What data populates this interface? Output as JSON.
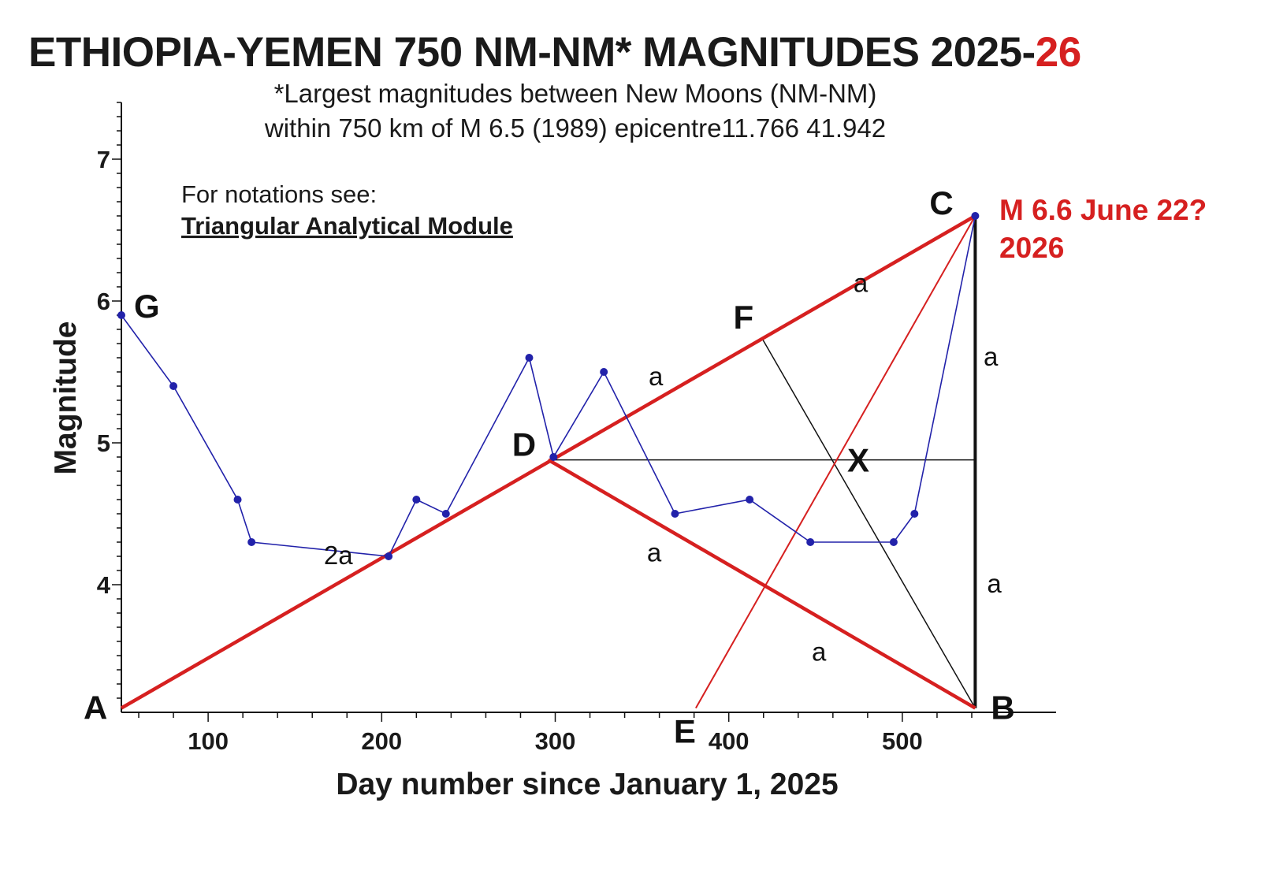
{
  "title": {
    "main": "ETHIOPIA-YEMEN 750 NM-NM* MAGNITUDES 2025-",
    "accent": "26"
  },
  "subtitle": {
    "line1": "*Largest magnitudes between New Moons (NM-NM)",
    "line2": "within 750 km of M 6.5 (1989) epicentre11.766 41.942"
  },
  "notes": {
    "line1": "For notations see:",
    "link": "Triangular Analytical Module"
  },
  "colors": {
    "series": "#2222aa",
    "construction": "#d62020",
    "axis": "#111111",
    "text": "#1a1a1a",
    "accent": "#d62020"
  },
  "chart_data": {
    "type": "line",
    "xlabel": "Day number since January 1, 2025",
    "ylabel": "Magnitude",
    "xlim": [
      50,
      545
    ],
    "ylim": [
      3.1,
      7.4
    ],
    "x_ticks": [
      100,
      200,
      300,
      400,
      500
    ],
    "y_ticks": [
      4,
      5,
      6,
      7
    ],
    "series": [
      {
        "x": [
          50,
          80,
          117,
          125,
          204,
          220,
          237,
          285,
          299,
          328,
          369,
          412,
          447,
          495,
          507,
          542
        ],
        "y": [
          5.9,
          5.4,
          4.6,
          4.3,
          4.2,
          4.6,
          4.5,
          5.6,
          4.9,
          5.5,
          4.5,
          4.6,
          4.3,
          4.3,
          4.5,
          6.6
        ]
      }
    ],
    "points": [
      {
        "label": "A",
        "x": 50,
        "y": 3.13
      },
      {
        "label": "B",
        "x": 542,
        "y": 3.13
      },
      {
        "label": "C",
        "x": 542,
        "y": 6.6
      },
      {
        "label": "D",
        "x": 296,
        "y": 4.88
      },
      {
        "label": "E",
        "x": 381,
        "y": 3.13
      },
      {
        "label": "F",
        "x": 419,
        "y": 5.74
      },
      {
        "label": "G",
        "x": 50,
        "y": 5.9
      },
      {
        "label": "X",
        "x": 461,
        "y": 4.88
      }
    ],
    "segment_labels": [
      {
        "text": "2a",
        "x": 175,
        "y": 4.2
      },
      {
        "text": "a",
        "x": 358,
        "y": 5.46
      },
      {
        "text": "a",
        "x": 476,
        "y": 6.12
      },
      {
        "text": "a",
        "x": 551,
        "y": 5.6
      },
      {
        "text": "a",
        "x": 553,
        "y": 4.0
      },
      {
        "text": "a",
        "x": 357,
        "y": 4.22
      },
      {
        "text": "a",
        "x": 452,
        "y": 3.52
      }
    ],
    "annotation": {
      "line1": "M 6.6 June 22?",
      "line2": "2026"
    }
  }
}
